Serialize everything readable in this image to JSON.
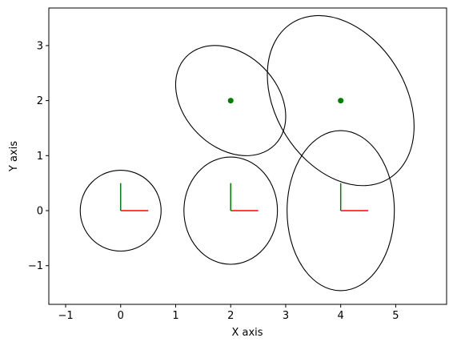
{
  "chart_data": {
    "type": "ellipse",
    "xlabel": "X axis",
    "ylabel": "Y axis",
    "xlim": [
      -1.306,
      5.925
    ],
    "ylim": [
      -1.703,
      3.683
    ],
    "xticks": [
      {
        "value": -1,
        "label": "−1"
      },
      0,
      1,
      2,
      3,
      4,
      5
    ],
    "yticks": [
      {
        "value": -1,
        "label": "−1"
      },
      0,
      1,
      2,
      3
    ],
    "ellipse_color": "#000000",
    "ellipses": [
      {
        "cx": 0,
        "cy": 0,
        "width": 1.47,
        "height": 1.47,
        "angle": 0
      },
      {
        "cx": 2,
        "cy": 0,
        "width": 1.7,
        "height": 1.95,
        "angle": 0
      },
      {
        "cx": 4,
        "cy": 0,
        "width": 1.95,
        "height": 2.91,
        "angle": 0
      },
      {
        "cx": 2,
        "cy": 2,
        "width": 2.27,
        "height": 1.69,
        "angle": 135
      },
      {
        "cx": 4,
        "cy": 2,
        "width": 3.33,
        "height": 2.36,
        "angle": 122
      }
    ],
    "points": {
      "color": "#008000",
      "x": [
        2,
        4
      ],
      "y": [
        2,
        2
      ]
    },
    "frames": {
      "x_color": "#ff0000",
      "y_color": "#008000",
      "x": [
        0,
        2,
        4
      ],
      "y": [
        0,
        0,
        0
      ],
      "length": 0.5
    }
  }
}
